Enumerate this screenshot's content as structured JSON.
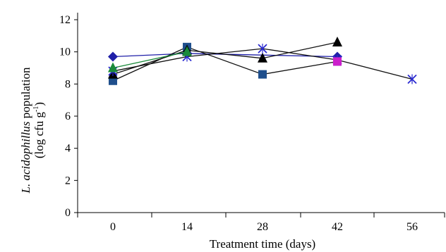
{
  "chart_data": {
    "type": "line",
    "xlabel": "Treatment time (days)",
    "ylabel_line1_italic": "L. acidophillus",
    "ylabel_line1_rest": " population",
    "ylabel_line2_pre": "(log cfu g",
    "ylabel_line2_sup": "-1",
    "ylabel_line2_post": ")",
    "x_ticks": [
      "0",
      "14",
      "28",
      "42",
      "56"
    ],
    "y_ticks": [
      "0",
      "2",
      "4",
      "6",
      "8",
      "10",
      "12"
    ],
    "x_categories": [
      0,
      14,
      28,
      42,
      56
    ],
    "ylim": [
      0,
      12
    ],
    "grid": false,
    "legend": "none",
    "series": [
      {
        "marker": "diamond",
        "color": "#1f1fa8",
        "line_color": "#1f1fa8",
        "x": [
          0,
          14,
          42
        ],
        "y": [
          9.7,
          9.9,
          9.7
        ]
      },
      {
        "marker": "square",
        "color": "#1f4f8c",
        "line_color": "#111111",
        "x": [
          0,
          14,
          28,
          42
        ],
        "y": [
          8.2,
          10.3,
          8.6,
          9.4
        ]
      },
      {
        "marker": "triangle",
        "color": "#000000",
        "line_color": "#111111",
        "x": [
          0,
          14,
          28,
          42
        ],
        "y": [
          8.6,
          10.1,
          9.6,
          10.6
        ]
      },
      {
        "marker": "x",
        "color": "#2a2ad0",
        "line_color": "#111111",
        "x": [
          0,
          14,
          28,
          42,
          56
        ],
        "y": [
          8.8,
          9.7,
          10.2,
          9.5,
          8.3
        ]
      },
      {
        "marker": "square",
        "color": "#cc1fcc",
        "line_color": "#111111",
        "x": [
          42
        ],
        "y": [
          9.4
        ]
      },
      {
        "marker": "triangle",
        "color": "#1a8a3a",
        "line_color": "#1a8a3a",
        "x": [
          0,
          14
        ],
        "y": [
          9.0,
          10.0
        ]
      }
    ]
  }
}
